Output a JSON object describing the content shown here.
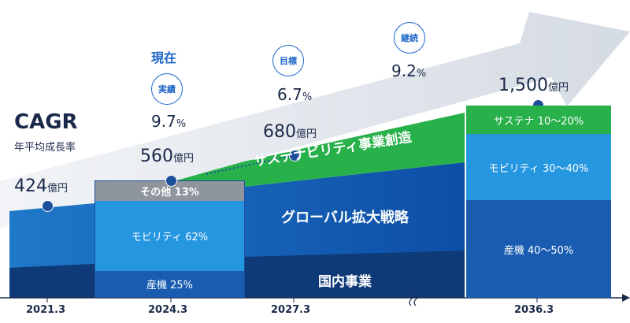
{
  "cagr": {
    "title": "CAGR",
    "subtitle": "年平均成長率"
  },
  "current_label": "現在",
  "periods": [
    {
      "tag": "実績",
      "rate": "9.7",
      "unit": "%"
    },
    {
      "tag": "目標",
      "rate": "6.7",
      "unit": "%"
    },
    {
      "tag": "継続",
      "rate": "9.2",
      "unit": "%"
    }
  ],
  "values": [
    {
      "amount": "424",
      "unit": "億円"
    },
    {
      "amount": "560",
      "unit": "億円"
    },
    {
      "amount": "680",
      "unit": "億円"
    },
    {
      "amount": "1,500",
      "unit": "億円"
    }
  ],
  "bar_2024": {
    "segments": [
      {
        "label": "その他 13%",
        "share": 13,
        "color": "#8f959c"
      },
      {
        "label": "モビリティ 62%",
        "share": 62,
        "color": "#2596e0"
      },
      {
        "label": "産機 25%",
        "share": 25,
        "color": "#1a5db0"
      }
    ]
  },
  "bar_2036": {
    "segments": [
      {
        "label": "サステナ 10〜20%",
        "color": "#28b04a"
      },
      {
        "label": "モビリティ 30〜40%",
        "color": "#2596e0"
      },
      {
        "label": "産機 40〜50%",
        "color": "#1a5db0"
      }
    ]
  },
  "bands": {
    "sustain": "サステナビリティ事業創造",
    "global": "グローバル拡大戦略",
    "domestic": "国内事業"
  },
  "x_labels": [
    "2021.3",
    "2024.3",
    "2027.3",
    "2036.3"
  ],
  "colors": {
    "accent": "#1a63c9",
    "arrow": "#e3e8ef",
    "dark_blue": "#1d4f9c",
    "green": "#28b04a"
  }
}
